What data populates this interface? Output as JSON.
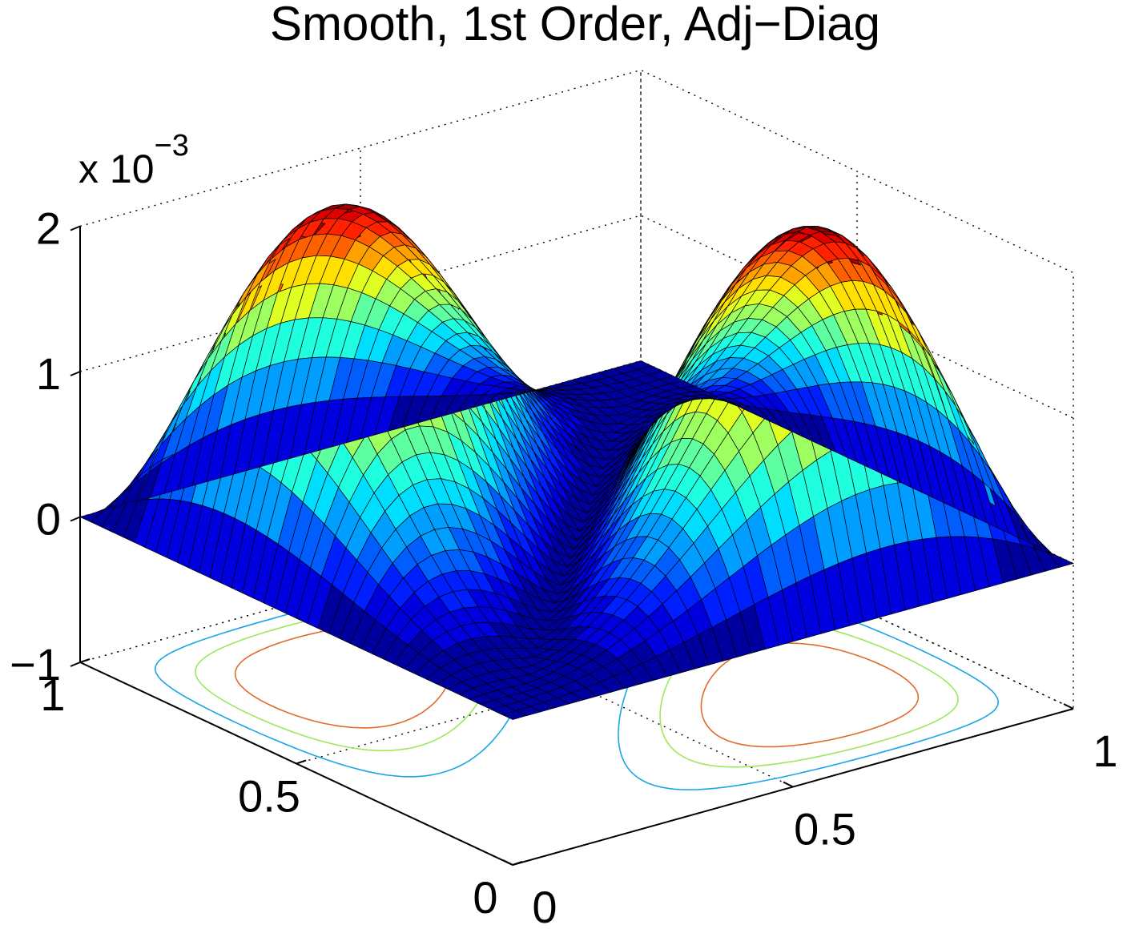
{
  "chart_data": {
    "type": "surface3d",
    "title": "Smooth, 1st Order, Adj−Diag",
    "z_exponent_label": "x 10",
    "z_exponent_power": "−3",
    "z_scale": 0.001,
    "x_range": [
      0,
      1
    ],
    "y_range": [
      0,
      1
    ],
    "z_range": [
      -1,
      2
    ],
    "x_ticks": [
      {
        "value": 0,
        "label": "0"
      },
      {
        "value": 0.5,
        "label": "0.5"
      },
      {
        "value": 1,
        "label": "1"
      }
    ],
    "y_ticks": [
      {
        "value": 0,
        "label": "0"
      },
      {
        "value": 0.5,
        "label": "0.5"
      },
      {
        "value": 1,
        "label": "1"
      }
    ],
    "z_ticks": [
      {
        "value": -1,
        "label": "−1"
      },
      {
        "value": 0,
        "label": "0"
      },
      {
        "value": 1,
        "label": "1"
      },
      {
        "value": 2,
        "label": "2"
      }
    ],
    "surface": {
      "grid_points": 41,
      "function": "two symmetric ridges separated by a valley along the diagonal x = y; zero on the boundary and on the diagonal",
      "peak_value": 2.2
    },
    "contour_levels": [
      {
        "value": 0.5,
        "color": "#1aa6e6"
      },
      {
        "value": 1.0,
        "color": "#9ce85c"
      },
      {
        "value": 1.5,
        "color": "#e06a2a"
      }
    ],
    "colormap": "jet",
    "grid": true
  }
}
